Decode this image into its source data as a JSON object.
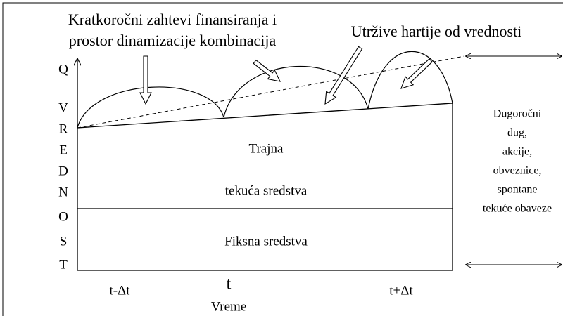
{
  "title": [
    "Kratkoročni zahtevi finansiranja i",
    "prostor dinamizacije kombinacija"
  ],
  "securities_label": "Utržive hartije od vrednosti",
  "y_axis": {
    "top": "Q",
    "letters": [
      "V",
      "R",
      "E",
      "D",
      "N",
      "O",
      "S",
      "T"
    ]
  },
  "regions": {
    "permanent": [
      "Trajna",
      "tekuća sredstva"
    ],
    "fixed": "Fiksna sredstva"
  },
  "x_axis": {
    "left": "t-Δt",
    "center": "t",
    "right": "t+Δt",
    "label": "Vreme"
  },
  "financing": [
    "Dugoročni",
    "dug,",
    "akcije,",
    "obveznice,",
    "spontane",
    "tekuće obaveze"
  ]
}
